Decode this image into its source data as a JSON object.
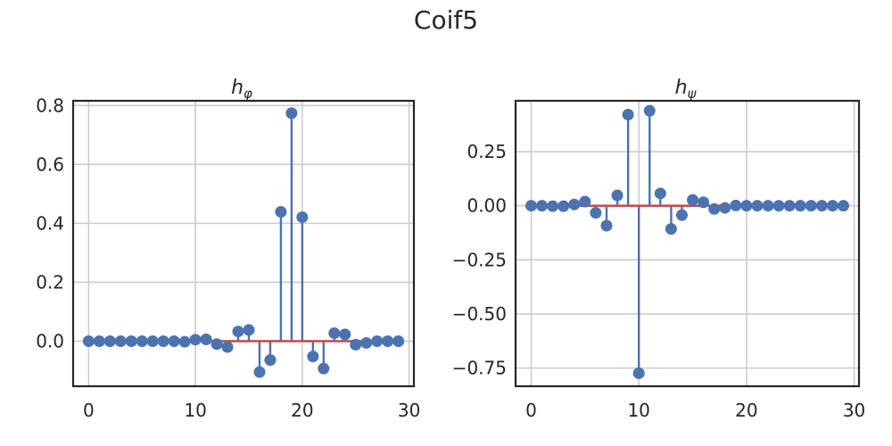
{
  "figure_title": "Coif5",
  "colors": {
    "stem": "#4c72b0",
    "baseline": "#c44e52",
    "grid": "#cccccc",
    "axes": "#262626"
  },
  "chart_data": [
    {
      "type": "stem",
      "title": "hφ",
      "title_main": "h",
      "title_sub": "φ",
      "grid": true,
      "xlim": [
        -1.45,
        30.45
      ],
      "ylim": [
        -0.153,
        0.816
      ],
      "xticks": [
        0,
        10,
        20,
        30
      ],
      "xtick_labels": [
        "0",
        "10",
        "20",
        "30"
      ],
      "yticks": [
        0.0,
        0.2,
        0.4,
        0.6,
        0.8
      ],
      "ytick_labels": [
        "0.0",
        "0.2",
        "0.4",
        "0.6",
        "0.8"
      ],
      "x": [
        0,
        1,
        2,
        3,
        4,
        5,
        6,
        7,
        8,
        9,
        10,
        11,
        12,
        13,
        14,
        15,
        16,
        17,
        18,
        19,
        20,
        21,
        22,
        23,
        24,
        25,
        26,
        27,
        28,
        29
      ],
      "y": [
        0.0,
        0.0,
        0.0,
        0.0,
        0.0,
        0.0,
        0.0,
        0.0,
        0.0,
        -0.002,
        0.005,
        0.006,
        -0.01,
        -0.02,
        0.033,
        0.038,
        -0.105,
        -0.064,
        0.439,
        0.774,
        0.421,
        -0.052,
        -0.093,
        0.027,
        0.023,
        -0.012,
        -0.006,
        0.0,
        0.0,
        0.0
      ]
    },
    {
      "type": "stem",
      "title": "hψ",
      "title_main": "h",
      "title_sub": "ψ",
      "grid": true,
      "xlim": [
        -1.45,
        30.45
      ],
      "ylim": [
        -0.834,
        0.485
      ],
      "xticks": [
        0,
        10,
        20,
        30
      ],
      "xtick_labels": [
        "0",
        "10",
        "20",
        "30"
      ],
      "yticks": [
        0.25,
        0.0,
        -0.25,
        -0.5,
        -0.75
      ],
      "ytick_labels": [
        "0.25",
        "0.00",
        "−0.25",
        "−0.50",
        "−0.75"
      ],
      "x": [
        0,
        1,
        2,
        3,
        4,
        5,
        6,
        7,
        8,
        9,
        10,
        11,
        12,
        13,
        14,
        15,
        16,
        17,
        18,
        19,
        20,
        21,
        22,
        23,
        24,
        25,
        26,
        27,
        28,
        29
      ],
      "y": [
        0.0,
        0.0,
        -0.002,
        -0.002,
        0.006,
        0.019,
        -0.033,
        -0.092,
        0.048,
        0.421,
        -0.774,
        0.439,
        0.057,
        -0.107,
        -0.043,
        0.027,
        0.016,
        -0.015,
        -0.01,
        0.001,
        0.0,
        0.0,
        0.0,
        0.0,
        0.0,
        0.0,
        0.0,
        0.0,
        0.0,
        0.0
      ]
    }
  ]
}
